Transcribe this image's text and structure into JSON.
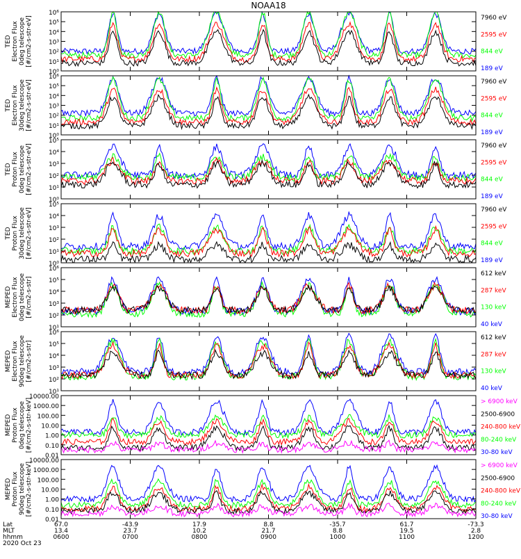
{
  "title": "NOAA18",
  "colors": {
    "blue": "#0000ff",
    "red": "#ff0000",
    "green": "#00ff00",
    "black": "#000000",
    "magenta": "#ff00ff"
  },
  "chart_data": {
    "type": "line",
    "title": "NOAA18",
    "x_axis": {
      "start_hhmm": "0600",
      "end_hhmm": "1200",
      "tick_rows": [
        {
          "label": "Lat",
          "values": [
            "67.0",
            "-43.9",
            "17.9",
            "8.8",
            "-35.7",
            "61.7",
            "-73.3"
          ]
        },
        {
          "label": "MLT",
          "values": [
            "13.4",
            "23.7",
            "10.2",
            "21.7",
            "8.8",
            "19.5",
            "2.8"
          ]
        },
        {
          "label": "hhmm",
          "values": [
            "0600",
            "0700",
            "0800",
            "0900",
            "1000",
            "1100",
            "1200"
          ]
        }
      ],
      "date": "2020 Oct 23"
    },
    "panels": [
      {
        "ylabel": [
          "TED",
          "Electron Flux",
          "0deg telescope",
          "[#/cm2-s-str-eV]"
        ],
        "ticks": [
          "10⁰",
          "10¹",
          "10²",
          "10³",
          "10⁴",
          "10⁵",
          "10⁶"
        ],
        "legend": [
          {
            "text": "7960 eV",
            "color": "black"
          },
          {
            "text": "2595 eV",
            "color": "red"
          },
          {
            "text": "844 eV",
            "color": "green"
          },
          {
            "text": "189 eV",
            "color": "blue"
          }
        ],
        "ylim_exp": [
          0,
          6
        ],
        "series": [
          {
            "name": "189 eV",
            "color": "blue",
            "base": 2.0,
            "peak": 5.8
          },
          {
            "name": "844 eV",
            "color": "green",
            "base": 1.6,
            "peak": 6.0
          },
          {
            "name": "2595 eV",
            "color": "red",
            "base": 1.2,
            "peak": 4.8
          },
          {
            "name": "7960 eV",
            "color": "black",
            "base": 0.8,
            "peak": 4.0
          }
        ]
      },
      {
        "ylabel": [
          "TED",
          "Electron Flux",
          "30deg telescope",
          "[#/cm2-s-str-eV]"
        ],
        "ticks": [
          "10⁰",
          "10¹",
          "10²",
          "10³",
          "10⁴",
          "10⁵",
          "10⁶"
        ],
        "legend": [
          {
            "text": "7960 eV",
            "color": "black"
          },
          {
            "text": "2595 eV",
            "color": "red"
          },
          {
            "text": "844 eV",
            "color": "green"
          },
          {
            "text": "189 eV",
            "color": "blue"
          }
        ],
        "ylim_exp": [
          0,
          6
        ],
        "series": [
          {
            "name": "189 eV",
            "color": "blue",
            "base": 2.2,
            "peak": 5.8
          },
          {
            "name": "844 eV",
            "color": "green",
            "base": 1.7,
            "peak": 5.6
          },
          {
            "name": "2595 eV",
            "color": "red",
            "base": 1.3,
            "peak": 4.6
          },
          {
            "name": "7960 eV",
            "color": "black",
            "base": 0.9,
            "peak": 3.8
          }
        ]
      },
      {
        "ylabel": [
          "TED",
          "Proton Flux",
          "0deg telescope",
          "[#/cm2-s-str-eV]"
        ],
        "ticks": [
          "10⁰",
          "10¹",
          "10²",
          "10³",
          "10⁴",
          "10⁵"
        ],
        "legend": [
          {
            "text": "7960 eV",
            "color": "black"
          },
          {
            "text": "2595 eV",
            "color": "red"
          },
          {
            "text": "844 eV",
            "color": "green"
          },
          {
            "text": "189 eV",
            "color": "blue"
          }
        ],
        "ylim_exp": [
          0,
          5
        ],
        "series": [
          {
            "name": "189 eV",
            "color": "blue",
            "base": 2.0,
            "peak": 4.4
          },
          {
            "name": "844 eV",
            "color": "green",
            "base": 1.8,
            "peak": 3.6
          },
          {
            "name": "2595 eV",
            "color": "red",
            "base": 1.5,
            "peak": 3.2
          },
          {
            "name": "7960 eV",
            "color": "black",
            "base": 1.2,
            "peak": 3.0
          }
        ]
      },
      {
        "ylabel": [
          "TED",
          "Proton Flux",
          "30deg telescope",
          "[#/cm2-s-str-eV]"
        ],
        "ticks": [
          "10⁰",
          "10¹",
          "10²",
          "10³",
          "10⁴",
          "10⁵"
        ],
        "legend": [
          {
            "text": "7960 eV",
            "color": "black"
          },
          {
            "text": "2595 eV",
            "color": "red"
          },
          {
            "text": "844 eV",
            "color": "green"
          },
          {
            "text": "189 eV",
            "color": "blue"
          }
        ],
        "ylim_exp": [
          0,
          5
        ],
        "series": [
          {
            "name": "189 eV",
            "color": "blue",
            "base": 1.4,
            "peak": 4.0
          },
          {
            "name": "844 eV",
            "color": "green",
            "base": 1.0,
            "peak": 3.0
          },
          {
            "name": "2595 eV",
            "color": "red",
            "base": 0.8,
            "peak": 2.8
          },
          {
            "name": "7960 eV",
            "color": "black",
            "base": 0.3,
            "peak": 1.5
          }
        ]
      },
      {
        "ylabel": [
          "MEPED",
          "Electron Flux",
          "0deg telescope",
          "[#/cm2-s-str]"
        ],
        "ticks": [
          "10¹",
          "10²",
          "10³",
          "10⁴",
          "10⁵",
          "10⁶"
        ],
        "legend": [
          {
            "text": "612 keV",
            "color": "black"
          },
          {
            "text": "287 keV",
            "color": "red"
          },
          {
            "text": "130 keV",
            "color": "green"
          },
          {
            "text": "40 keV",
            "color": "blue"
          }
        ],
        "ylim_exp": [
          1,
          6
        ],
        "series": [
          {
            "name": "40 keV",
            "color": "blue",
            "base": 2.3,
            "peak": 5.0
          },
          {
            "name": "130 keV",
            "color": "green",
            "base": 2.1,
            "peak": 4.5
          },
          {
            "name": "287 keV",
            "color": "red",
            "base": 2.4,
            "peak": 4.5
          },
          {
            "name": "612 keV",
            "color": "black",
            "base": 2.4,
            "peak": 4.3
          }
        ]
      },
      {
        "ylabel": [
          "MEPED",
          "Electron Flux",
          "90deg telescope",
          "[#/cm2-s-str]"
        ],
        "ticks": [
          "10¹",
          "10²",
          "10³",
          "10⁴",
          "10⁵",
          "10⁶"
        ],
        "legend": [
          {
            "text": "612 keV",
            "color": "black"
          },
          {
            "text": "287 keV",
            "color": "red"
          },
          {
            "text": "130 keV",
            "color": "green"
          },
          {
            "text": "40 keV",
            "color": "blue"
          }
        ],
        "ylim_exp": [
          1,
          6
        ],
        "series": [
          {
            "name": "40 keV",
            "color": "blue",
            "base": 2.6,
            "peak": 5.6
          },
          {
            "name": "130 keV",
            "color": "green",
            "base": 2.2,
            "peak": 5.2
          },
          {
            "name": "287 keV",
            "color": "red",
            "base": 2.3,
            "peak": 4.8
          },
          {
            "name": "612 keV",
            "color": "black",
            "base": 2.3,
            "peak": 4.2
          }
        ]
      },
      {
        "ylabel": [
          "MEPED",
          "Proton Flux",
          "0deg telescope",
          "[#/cm2-s-str-keV]"
        ],
        "ticks": [
          "0.01",
          "0.10",
          "1.00",
          "10.00",
          "100.00",
          "1000.00",
          "10000.00"
        ],
        "legend": [
          {
            "text": "> 6900 keV",
            "color": "magenta"
          },
          {
            "text": "2500-6900",
            "color": "black"
          },
          {
            "text": "240-800 keV",
            "color": "red"
          },
          {
            "text": "80-240 keV",
            "color": "green"
          },
          {
            "text": "30-80 keV",
            "color": "blue"
          }
        ],
        "ylim_exp": [
          -2,
          4
        ],
        "series": [
          {
            "name": "30-80 keV",
            "color": "blue",
            "base": 0.3,
            "peak": 3.4
          },
          {
            "name": "80-240 keV",
            "color": "green",
            "base": 0.0,
            "peak": 1.8
          },
          {
            "name": "240-800 keV",
            "color": "red",
            "base": -0.7,
            "peak": 1.4
          },
          {
            "name": "2500-6900",
            "color": "black",
            "base": -1.3,
            "peak": 0.7
          },
          {
            "name": "> 6900 keV",
            "color": "magenta",
            "base": -1.5,
            "peak": -0.8
          }
        ]
      },
      {
        "ylabel": [
          "MEPED",
          "Proton Flux",
          "90deg telescope",
          "[#/cm2-s-str-keV]"
        ],
        "ticks": [
          "0.01",
          "0.10",
          "1.00",
          "10.00",
          "100.00",
          "1000.00",
          "10000.00"
        ],
        "legend": [
          {
            "text": "> 6900 keV",
            "color": "magenta"
          },
          {
            "text": "2500-6900",
            "color": "black"
          },
          {
            "text": "240-800 keV",
            "color": "red"
          },
          {
            "text": "80-240 keV",
            "color": "green"
          },
          {
            "text": "30-80 keV",
            "color": "blue"
          }
        ],
        "ylim_exp": [
          -2,
          4
        ],
        "series": [
          {
            "name": "30-80 keV",
            "color": "blue",
            "base": 0.0,
            "peak": 3.2
          },
          {
            "name": "80-240 keV",
            "color": "green",
            "base": -0.6,
            "peak": 1.8
          },
          {
            "name": "240-800 keV",
            "color": "red",
            "base": -1.0,
            "peak": 1.2
          },
          {
            "name": "2500-6900",
            "color": "black",
            "base": -1.2,
            "peak": 0.6
          },
          {
            "name": "> 6900 keV",
            "color": "magenta",
            "base": -1.5,
            "peak": -0.7
          }
        ]
      }
    ],
    "pass_centers_hhmm": [
      "0645",
      "0725",
      "0815",
      "0855",
      "0935",
      "1010",
      "1045",
      "1125"
    ]
  }
}
